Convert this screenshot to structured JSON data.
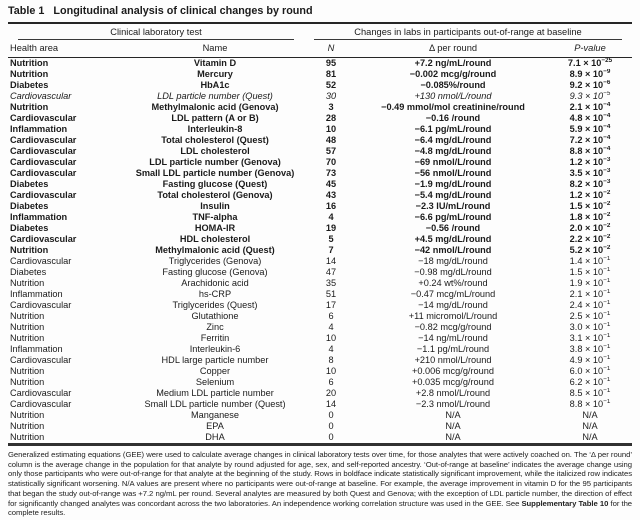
{
  "title": {
    "number": "Table 1",
    "text": "Longitudinal analysis of clinical changes by round"
  },
  "table": {
    "group_headers": [
      "Clinical laboratory test",
      "Changes in labs in participants out-of-range at baseline"
    ],
    "columns": {
      "health_area": "Health area",
      "name": "Name",
      "n": "N",
      "delta": "Δ per round",
      "p": "P-value"
    },
    "rows": [
      {
        "health_area": "Nutrition",
        "name": "Vitamin D",
        "n": "95",
        "delta": "+7.2 ng/mL/round",
        "p_base": "7.1 × 10",
        "p_exp": "−25",
        "style": "bold"
      },
      {
        "health_area": "Nutrition",
        "name": "Mercury",
        "n": "81",
        "delta": "−0.002 mcg/g/round",
        "p_base": "8.9 × 10",
        "p_exp": "−9",
        "style": "bold"
      },
      {
        "health_area": "Diabetes",
        "name": "HbA1c",
        "n": "52",
        "delta": "−0.085%/round",
        "p_base": "9.2 × 10",
        "p_exp": "−6",
        "style": "bold"
      },
      {
        "health_area": "Cardiovascular",
        "name": "LDL particle number (Quest)",
        "n": "30",
        "delta": "+130 nmol/L/round",
        "p_base": "9.3 × 10",
        "p_exp": "−5",
        "style": "italic"
      },
      {
        "health_area": "Nutrition",
        "name": "Methylmalonic acid (Genova)",
        "n": "3",
        "delta": "−0.49 mmol/mol creatinine/round",
        "p_base": "2.1 × 10",
        "p_exp": "−4",
        "style": "bold"
      },
      {
        "health_area": "Cardiovascular",
        "name": "LDL pattern (A or B)",
        "n": "28",
        "delta": "−0.16 /round",
        "p_base": "4.8 × 10",
        "p_exp": "−4",
        "style": "bold"
      },
      {
        "health_area": "Inflammation",
        "name": "Interleukin-8",
        "n": "10",
        "delta": "−6.1 pg/mL/round",
        "p_base": "5.9 × 10",
        "p_exp": "−4",
        "style": "bold"
      },
      {
        "health_area": "Cardiovascular",
        "name": "Total cholesterol (Quest)",
        "n": "48",
        "delta": "−6.4 mg/dL/round",
        "p_base": "7.2 × 10",
        "p_exp": "−4",
        "style": "bold"
      },
      {
        "health_area": "Cardiovascular",
        "name": "LDL cholesterol",
        "n": "57",
        "delta": "−4.8 mg/dL/round",
        "p_base": "8.8 × 10",
        "p_exp": "−4",
        "style": "bold"
      },
      {
        "health_area": "Cardiovascular",
        "name": "LDL particle number (Genova)",
        "n": "70",
        "delta": "−69 nmol/L/round",
        "p_base": "1.2 × 10",
        "p_exp": "−3",
        "style": "bold"
      },
      {
        "health_area": "Cardiovascular",
        "name": "Small LDL particle number (Genova)",
        "n": "73",
        "delta": "−56 nmol/L/round",
        "p_base": "3.5 × 10",
        "p_exp": "−3",
        "style": "bold"
      },
      {
        "health_area": "Diabetes",
        "name": "Fasting glucose (Quest)",
        "n": "45",
        "delta": "−1.9 mg/dL/round",
        "p_base": "8.2 × 10",
        "p_exp": "−3",
        "style": "bold"
      },
      {
        "health_area": "Cardiovascular",
        "name": "Total cholesterol (Genova)",
        "n": "43",
        "delta": "−5.4 mg/dL/round",
        "p_base": "1.2 × 10",
        "p_exp": "−2",
        "style": "bold"
      },
      {
        "health_area": "Diabetes",
        "name": "Insulin",
        "n": "16",
        "delta": "−2.3 IU/mL/round",
        "p_base": "1.5 × 10",
        "p_exp": "−2",
        "style": "bold"
      },
      {
        "health_area": "Inflammation",
        "name": "TNF-alpha",
        "n": "4",
        "delta": "−6.6 pg/mL/round",
        "p_base": "1.8 × 10",
        "p_exp": "−2",
        "style": "bold"
      },
      {
        "health_area": "Diabetes",
        "name": "HOMA-IR",
        "n": "19",
        "delta": "−0.56 /round",
        "p_base": "2.0 × 10",
        "p_exp": "−2",
        "style": "bold"
      },
      {
        "health_area": "Cardiovascular",
        "name": "HDL cholesterol",
        "n": "5",
        "delta": "+4.5 mg/dL/round",
        "p_base": "2.2 × 10",
        "p_exp": "−2",
        "style": "bold"
      },
      {
        "health_area": "Nutrition",
        "name": "Methylmalonic acid (Quest)",
        "n": "7",
        "delta": "−42 nmol/L/round",
        "p_base": "5.2 × 10",
        "p_exp": "−2",
        "style": "bold"
      },
      {
        "health_area": "Cardiovascular",
        "name": "Triglycerides (Genova)",
        "n": "14",
        "delta": "−18 mg/dL/round",
        "p_base": "1.4 × 10",
        "p_exp": "−1",
        "style": "normal"
      },
      {
        "health_area": "Diabetes",
        "name": "Fasting glucose (Genova)",
        "n": "47",
        "delta": "−0.98 mg/dL/round",
        "p_base": "1.5 × 10",
        "p_exp": "−1",
        "style": "normal"
      },
      {
        "health_area": "Nutrition",
        "name": "Arachidonic acid",
        "n": "35",
        "delta": "+0.24 wt%/round",
        "p_base": "1.9 × 10",
        "p_exp": "−1",
        "style": "normal"
      },
      {
        "health_area": "Inflammation",
        "name": "hs-CRP",
        "n": "51",
        "delta": "−0.47 mcg/mL/round",
        "p_base": "2.1 × 10",
        "p_exp": "−1",
        "style": "normal"
      },
      {
        "health_area": "Cardiovascular",
        "name": "Triglycerides (Quest)",
        "n": "17",
        "delta": "−14 mg/dL/round",
        "p_base": "2.4 × 10",
        "p_exp": "−1",
        "style": "normal"
      },
      {
        "health_area": "Nutrition",
        "name": "Glutathione",
        "n": "6",
        "delta": "+11 micromol/L/round",
        "p_base": "2.5 × 10",
        "p_exp": "−1",
        "style": "normal"
      },
      {
        "health_area": "Nutrition",
        "name": "Zinc",
        "n": "4",
        "delta": "−0.82 mcg/g/round",
        "p_base": "3.0 × 10",
        "p_exp": "−1",
        "style": "normal"
      },
      {
        "health_area": "Nutrition",
        "name": "Ferritin",
        "n": "10",
        "delta": "−14 ng/mL/round",
        "p_base": "3.1 × 10",
        "p_exp": "−1",
        "style": "normal"
      },
      {
        "health_area": "Inflammation",
        "name": "Interleukin-6",
        "n": "4",
        "delta": "−1.1 pg/mL/round",
        "p_base": "3.8 × 10",
        "p_exp": "−1",
        "style": "normal"
      },
      {
        "health_area": "Cardiovascular",
        "name": "HDL large particle number",
        "n": "8",
        "delta": "+210 nmol/L/round",
        "p_base": "4.9 × 10",
        "p_exp": "−1",
        "style": "normal"
      },
      {
        "health_area": "Nutrition",
        "name": "Copper",
        "n": "10",
        "delta": "+0.006 mcg/g/round",
        "p_base": "6.0 × 10",
        "p_exp": "−1",
        "style": "normal"
      },
      {
        "health_area": "Nutrition",
        "name": "Selenium",
        "n": "6",
        "delta": "+0.035 mcg/g/round",
        "p_base": "6.2 × 10",
        "p_exp": "−1",
        "style": "normal"
      },
      {
        "health_area": "Cardiovascular",
        "name": "Medium LDL particle number",
        "n": "20",
        "delta": "+2.8 nmol/L/round",
        "p_base": "8.5 × 10",
        "p_exp": "−1",
        "style": "normal"
      },
      {
        "health_area": "Cardiovascular",
        "name": "Small LDL particle number (Quest)",
        "n": "14",
        "delta": "−2.3 nmol/L/round",
        "p_base": "8.8 × 10",
        "p_exp": "−1",
        "style": "normal"
      },
      {
        "health_area": "Nutrition",
        "name": "Manganese",
        "n": "0",
        "delta": "N/A",
        "p_base": "N/A",
        "p_exp": "",
        "style": "normal"
      },
      {
        "health_area": "Nutrition",
        "name": "EPA",
        "n": "0",
        "delta": "N/A",
        "p_base": "N/A",
        "p_exp": "",
        "style": "normal"
      },
      {
        "health_area": "Nutrition",
        "name": "DHA",
        "n": "0",
        "delta": "N/A",
        "p_base": "N/A",
        "p_exp": "",
        "style": "normal"
      }
    ]
  },
  "footnote": {
    "text_before": "Generalized estimating equations (GEE) were used to calculate average changes in clinical laboratory tests over time, for those analytes that were actively coached on. The ‘Δ per round’ column is the average change in the population for that analyte by round adjusted for age, sex, and self-reported ancestry. ‘Out-of-range at baseline’ indicates the average change using only those participants who were out-of-range for that analyte at the beginning of the study. Rows in boldface indicate statistically significant improvement, while the italicized row indicates statistically significant worsening. N/A values are present where no participants were out-of-range at baseline. For example, the average improvement in vitamin D for the 95 participants that began the study out-of-range was +7.2 ng/mL per round. Several analytes are measured by both Quest and Genova; with the exception of LDL particle number, the direction of effect for significantly changed analytes was concordant across the two laboratories. An independence working correlation structure was used in the GEE. See ",
    "bold_ref": "Supplementary Table 10",
    "text_after": " for the complete results."
  }
}
